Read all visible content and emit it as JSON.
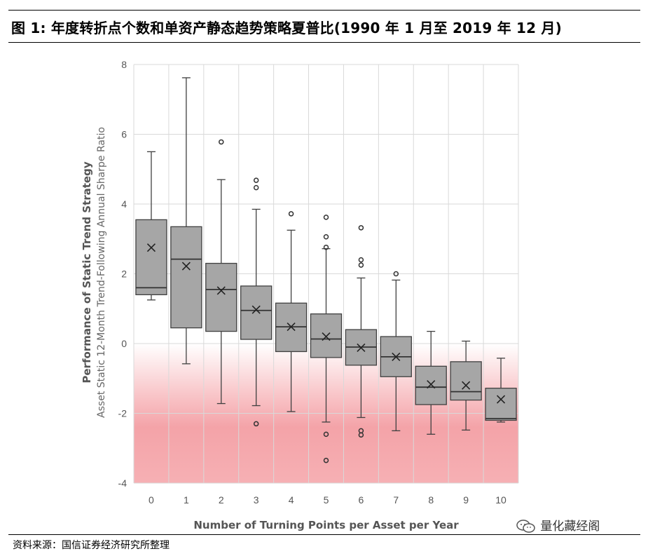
{
  "header": {
    "figure_title": "图 1:  年度转折点个数和单资产静态趋势策略夏普比(1990 年 1 月至 2019 年 12 月)"
  },
  "footer": {
    "source": "资料来源：国信证券经济研究所整理",
    "watermark": "量化藏经阁"
  },
  "colors": {
    "box_fill": "#a6a6a6",
    "box_stroke": "#404040",
    "negative_shade": "#f4a3a8",
    "grid": "#d9d9d9"
  },
  "chart_data": {
    "type": "box",
    "title": "",
    "xlabel": "Number of Turning Points per Asset per Year",
    "ylabel": "Performance of Static Trend Strategy",
    "ylabel_sub": "Asset Static 12-Month Trend-Following Annual Sharpe Ratio",
    "ylim": [
      -4,
      8
    ],
    "yticks": [
      -4,
      -2,
      0,
      2,
      4,
      6,
      8
    ],
    "grid": true,
    "negative_region_shaded": true,
    "categories": [
      "0",
      "1",
      "2",
      "3",
      "4",
      "5",
      "6",
      "7",
      "8",
      "9",
      "10"
    ],
    "boxes": [
      {
        "category": "0",
        "min": 1.25,
        "q1": 1.4,
        "median": 1.6,
        "q3": 3.55,
        "max": 5.5,
        "mean": 2.75,
        "outliers": []
      },
      {
        "category": "1",
        "min": -0.58,
        "q1": 0.45,
        "median": 2.42,
        "q3": 3.35,
        "max": 7.62,
        "mean": 2.22,
        "outliers": []
      },
      {
        "category": "2",
        "min": -1.72,
        "q1": 0.35,
        "median": 1.55,
        "q3": 2.3,
        "max": 4.7,
        "mean": 1.52,
        "outliers": [
          5.78
        ]
      },
      {
        "category": "3",
        "min": -1.78,
        "q1": 0.12,
        "median": 0.95,
        "q3": 1.65,
        "max": 3.85,
        "mean": 0.97,
        "outliers": [
          4.68,
          4.47,
          -2.3
        ]
      },
      {
        "category": "4",
        "min": -1.95,
        "q1": -0.23,
        "median": 0.48,
        "q3": 1.16,
        "max": 3.25,
        "mean": 0.48,
        "outliers": [
          3.72
        ]
      },
      {
        "category": "5",
        "min": -2.25,
        "q1": -0.4,
        "median": 0.13,
        "q3": 0.85,
        "max": 2.72,
        "mean": 0.2,
        "outliers": [
          3.62,
          3.06,
          2.76,
          -2.6,
          -3.35
        ]
      },
      {
        "category": "6",
        "min": -2.12,
        "q1": -0.62,
        "median": -0.1,
        "q3": 0.4,
        "max": 1.88,
        "mean": -0.12,
        "outliers": [
          3.32,
          2.4,
          2.25,
          -2.5,
          -2.62
        ]
      },
      {
        "category": "7",
        "min": -2.5,
        "q1": -0.95,
        "median": -0.38,
        "q3": 0.2,
        "max": 1.82,
        "mean": -0.38,
        "outliers": [
          2.0
        ]
      },
      {
        "category": "8",
        "min": -2.6,
        "q1": -1.75,
        "median": -1.25,
        "q3": -0.65,
        "max": 0.35,
        "mean": -1.17,
        "outliers": []
      },
      {
        "category": "9",
        "min": -2.48,
        "q1": -1.62,
        "median": -1.38,
        "q3": -0.52,
        "max": 0.07,
        "mean": -1.2,
        "outliers": []
      },
      {
        "category": "10",
        "min": -2.25,
        "q1": -2.2,
        "median": -2.15,
        "q3": -1.28,
        "max": -0.42,
        "mean": -1.6,
        "outliers": []
      }
    ]
  }
}
